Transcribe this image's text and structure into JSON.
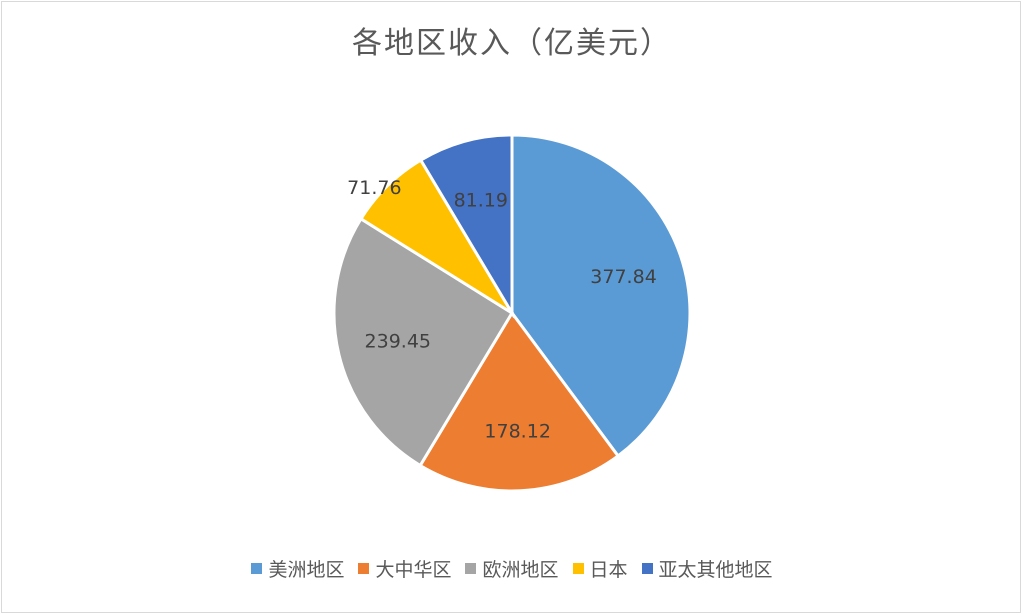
{
  "chart_data": {
    "type": "pie",
    "title": "各地区收入（亿美元）",
    "categories": [
      "美洲地区",
      "大中华区",
      "欧洲地区",
      "日本",
      "亚太其他地区"
    ],
    "values": [
      377.84,
      178.12,
      239.45,
      71.76,
      81.19
    ],
    "value_labels": [
      "377.84",
      "178.12",
      "239.45",
      "71.76",
      "81.19"
    ],
    "colors": [
      "#5B9BD5",
      "#ED7D31",
      "#A5A5A5",
      "#FFC000",
      "#4472C4"
    ],
    "start_angle": "12 o'clock",
    "direction": "clockwise",
    "legend_position": "bottom"
  }
}
